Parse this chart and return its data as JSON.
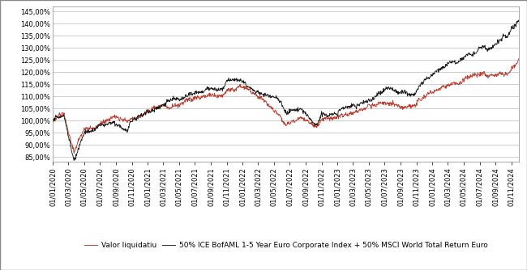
{
  "title": "",
  "ylim": [
    0.83,
    1.47
  ],
  "yticks": [
    0.85,
    0.9,
    0.95,
    1.0,
    1.05,
    1.1,
    1.15,
    1.2,
    1.25,
    1.3,
    1.35,
    1.4,
    1.45
  ],
  "ytick_labels": [
    "85,00%",
    "90,00%",
    "95,00%",
    "100,00%",
    "105,00%",
    "110,00%",
    "115,00%",
    "120,00%",
    "125,00%",
    "130,00%",
    "135,00%",
    "140,00%",
    "145,00%"
  ],
  "line1_label": "Valor liquidatiu",
  "line1_color": "#c0392b",
  "line2_label": "50% ICE BofAML 1-5 Year Euro Corporate Index + 50% MSCI World Total Return Euro",
  "line2_color": "#1a1a1a",
  "background_color": "#ffffff",
  "grid_color": "#bbbbbb",
  "legend_fontsize": 6.5,
  "tick_fontsize": 6.0,
  "date_start": "2020-01-01",
  "date_end": "2024-11-30",
  "bench_keys": {
    "2020-01-01": 1.0,
    "2020-02-14": 1.03,
    "2020-03-23": 0.853,
    "2020-05-01": 0.965,
    "2020-06-08": 0.98,
    "2020-07-01": 0.998,
    "2020-08-15": 1.01,
    "2020-09-25": 0.978,
    "2020-10-15": 0.97,
    "2020-11-06": 1.005,
    "2020-12-31": 1.038,
    "2021-02-01": 1.058,
    "2021-03-15": 1.075,
    "2021-05-01": 1.085,
    "2021-06-15": 1.1,
    "2021-08-01": 1.11,
    "2021-09-15": 1.115,
    "2021-10-15": 1.125,
    "2021-11-05": 1.16,
    "2021-12-01": 1.165,
    "2022-01-05": 1.165,
    "2022-02-01": 1.148,
    "2022-03-01": 1.13,
    "2022-04-01": 1.12,
    "2022-05-10": 1.105,
    "2022-06-16": 1.04,
    "2022-07-15": 1.05,
    "2022-08-15": 1.06,
    "2022-09-30": 1.005,
    "2022-10-13": 1.0,
    "2022-11-01": 1.045,
    "2022-12-01": 1.045,
    "2022-12-31": 1.04,
    "2023-01-20": 1.065,
    "2023-02-10": 1.068,
    "2023-03-15": 1.065,
    "2023-04-15": 1.08,
    "2023-05-15": 1.082,
    "2023-06-15": 1.09,
    "2023-07-20": 1.1,
    "2023-08-15": 1.09,
    "2023-09-25": 1.075,
    "2023-10-20": 1.078,
    "2023-11-15": 1.105,
    "2023-12-15": 1.125,
    "2024-01-20": 1.15,
    "2024-02-15": 1.175,
    "2024-03-20": 1.19,
    "2024-04-15": 1.18,
    "2024-05-15": 1.195,
    "2024-06-15": 1.205,
    "2024-07-15": 1.23,
    "2024-08-05": 1.22,
    "2024-08-25": 1.24,
    "2024-09-15": 1.255,
    "2024-10-01": 1.265,
    "2024-10-15": 1.27,
    "2024-11-01": 1.305,
    "2024-11-15": 1.32,
    "2024-11-30": 1.335
  },
  "fund_keys": {
    "2020-01-01": 1.0,
    "2020-02-14": 1.022,
    "2020-03-23": 0.862,
    "2020-05-01": 0.95,
    "2020-06-08": 0.96,
    "2020-07-01": 0.972,
    "2020-08-15": 0.985,
    "2020-09-25": 0.965,
    "2020-10-15": 0.958,
    "2020-11-06": 0.985,
    "2020-12-31": 1.01,
    "2021-02-01": 1.025,
    "2021-03-15": 1.042,
    "2021-05-01": 1.055,
    "2021-06-15": 1.068,
    "2021-08-01": 1.082,
    "2021-09-15": 1.09,
    "2021-10-15": 1.1,
    "2021-11-05": 1.128,
    "2021-12-01": 1.135,
    "2022-01-05": 1.14,
    "2022-02-01": 1.118,
    "2022-03-01": 1.1,
    "2022-04-01": 1.085,
    "2022-05-10": 1.06,
    "2022-06-16": 1.005,
    "2022-07-15": 1.012,
    "2022-08-15": 1.025,
    "2022-09-30": 0.982,
    "2022-10-13": 0.98,
    "2022-11-01": 1.01,
    "2022-12-01": 1.008,
    "2022-12-31": 1.005,
    "2023-01-20": 1.025,
    "2023-02-10": 1.028,
    "2023-03-15": 1.032,
    "2023-04-15": 1.042,
    "2023-05-15": 1.048,
    "2023-06-15": 1.06,
    "2023-07-20": 1.07,
    "2023-08-15": 1.062,
    "2023-09-25": 1.05,
    "2023-10-20": 1.05,
    "2023-11-15": 1.075,
    "2023-12-15": 1.092,
    "2024-01-20": 1.108,
    "2024-02-15": 1.125,
    "2024-03-20": 1.138,
    "2024-04-15": 1.13,
    "2024-05-15": 1.142,
    "2024-06-15": 1.15,
    "2024-07-15": 1.168,
    "2024-08-05": 1.155,
    "2024-08-25": 1.17,
    "2024-09-15": 1.182,
    "2024-10-01": 1.19,
    "2024-10-15": 1.195,
    "2024-11-01": 1.222,
    "2024-11-15": 1.238,
    "2024-11-30": 1.262
  }
}
